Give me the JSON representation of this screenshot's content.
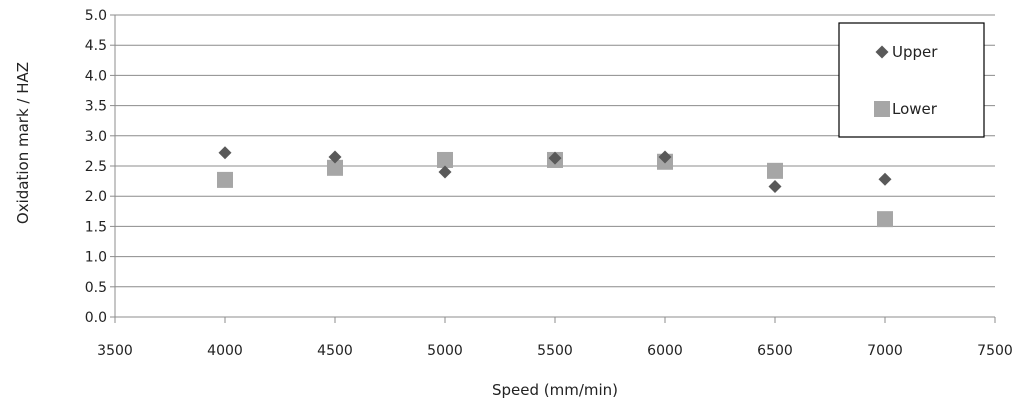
{
  "chart_data": {
    "type": "scatter",
    "title": "",
    "xlabel": "Speed (mm/min)",
    "ylabel": "Oxidation  mark / HAZ",
    "xlim": [
      3500,
      7500
    ],
    "ylim": [
      0,
      5
    ],
    "x_ticks": [
      "3500",
      "4000",
      "4500",
      "5000",
      "5500",
      "6000",
      "6500",
      "7000",
      "7500"
    ],
    "y_ticks": [
      "0.0",
      "0.5",
      "1.0",
      "1.5",
      "2.0",
      "2.5",
      "3.0",
      "3.5",
      "4.0",
      "4.5",
      "5.0"
    ],
    "grid": "horizontal",
    "legend_position": "top-right",
    "series": [
      {
        "name": "Upper",
        "marker": "diamond",
        "color": "#595959",
        "points": [
          {
            "x": 4000,
            "y": 2.72
          },
          {
            "x": 4500,
            "y": 2.65
          },
          {
            "x": 5000,
            "y": 2.4
          },
          {
            "x": 5500,
            "y": 2.63
          },
          {
            "x": 6000,
            "y": 2.65
          },
          {
            "x": 6500,
            "y": 2.16
          },
          {
            "x": 7000,
            "y": 2.28
          }
        ]
      },
      {
        "name": "Lower",
        "marker": "square",
        "color": "#a6a6a6",
        "points": [
          {
            "x": 4000,
            "y": 2.27
          },
          {
            "x": 4500,
            "y": 2.47
          },
          {
            "x": 5000,
            "y": 2.6
          },
          {
            "x": 5500,
            "y": 2.6
          },
          {
            "x": 6000,
            "y": 2.57
          },
          {
            "x": 6500,
            "y": 2.42
          },
          {
            "x": 7000,
            "y": 1.62
          }
        ]
      }
    ]
  }
}
